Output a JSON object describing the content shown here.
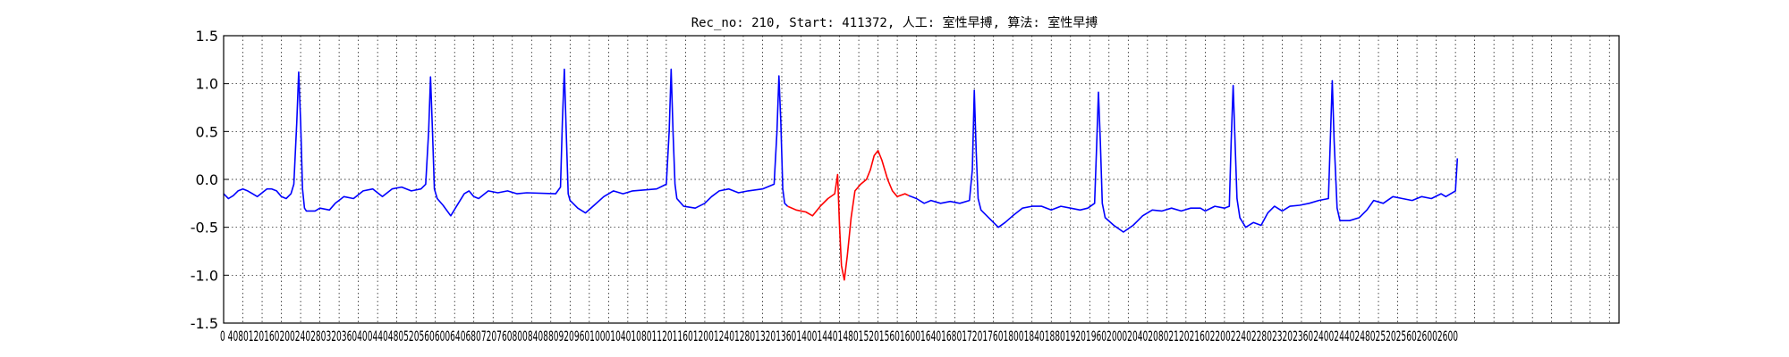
{
  "chart_data": {
    "type": "line",
    "title": "Rec_no: 210, Start: 411372, 人工: 室性早搏, 算法: 室性早搏",
    "xlabel": "",
    "ylabel": "",
    "xlim": [
      0,
      1450
    ],
    "ylim": [
      -1.5,
      1.5
    ],
    "grid": true,
    "y_ticks": [
      -1.5,
      -1.0,
      -0.5,
      0.0,
      0.5,
      1.0,
      1.5
    ],
    "x_tick_step": 20,
    "x_tick_labels": "0 4080 120 160 200 240 280 320 360 400 440 480 520 560 600 640 680 720 760 800 840 880 920 960 1000 1040 1080 1120 1160 1200 1240 1280 1320 1360 1400 1440 1480 1520 1560 1600 1640 1680 1720 1760 1800 1840 1880 1920 1960 2000 2040 2080 2120 2160 2200 2240 2280 2320 2360 2400 2440 2480 2520 2560 2600",
    "x_tick_labels_display": "0 4080120160200240280320360400440480520560600640680720760800840880920960100010401080112011601200124012801320136014001440148015201560160016401680172017601800184018801920196020002040208021202160220022402280232023602400244024802520256026002600",
    "series": [
      {
        "color": "#0000ff",
        "points": [
          [
            0,
            -0.15
          ],
          [
            5,
            -0.2
          ],
          [
            10,
            -0.17
          ],
          [
            15,
            -0.12
          ],
          [
            20,
            -0.1
          ],
          [
            25,
            -0.12
          ],
          [
            30,
            -0.15
          ],
          [
            35,
            -0.18
          ],
          [
            40,
            -0.14
          ],
          [
            45,
            -0.1
          ],
          [
            50,
            -0.1
          ],
          [
            55,
            -0.12
          ],
          [
            60,
            -0.18
          ],
          [
            65,
            -0.2
          ],
          [
            70,
            -0.15
          ],
          [
            73,
            -0.05
          ],
          [
            76,
            0.6
          ],
          [
            78,
            1.12
          ],
          [
            80,
            0.6
          ],
          [
            82,
            -0.1
          ],
          [
            84,
            -0.3
          ],
          [
            86,
            -0.33
          ],
          [
            95,
            -0.33
          ],
          [
            100,
            -0.3
          ],
          [
            110,
            -0.32
          ],
          [
            116,
            -0.25
          ],
          [
            125,
            -0.18
          ],
          [
            135,
            -0.2
          ],
          [
            145,
            -0.12
          ],
          [
            155,
            -0.1
          ],
          [
            165,
            -0.18
          ],
          [
            175,
            -0.1
          ],
          [
            185,
            -0.08
          ],
          [
            195,
            -0.12
          ],
          [
            205,
            -0.1
          ],
          [
            210,
            -0.05
          ],
          [
            213,
            0.5
          ],
          [
            215,
            1.07
          ],
          [
            217,
            0.5
          ],
          [
            219,
            -0.1
          ],
          [
            222,
            -0.2
          ],
          [
            228,
            -0.27
          ],
          [
            236,
            -0.38
          ],
          [
            242,
            -0.28
          ],
          [
            250,
            -0.15
          ],
          [
            255,
            -0.12
          ],
          [
            260,
            -0.18
          ],
          [
            265,
            -0.2
          ],
          [
            275,
            -0.12
          ],
          [
            285,
            -0.14
          ],
          [
            295,
            -0.12
          ],
          [
            305,
            -0.15
          ],
          [
            315,
            -0.14
          ],
          [
            345,
            -0.15
          ],
          [
            350,
            -0.08
          ],
          [
            352,
            0.6
          ],
          [
            354,
            1.15
          ],
          [
            356,
            0.5
          ],
          [
            358,
            -0.15
          ],
          [
            360,
            -0.22
          ],
          [
            368,
            -0.3
          ],
          [
            376,
            -0.35
          ],
          [
            385,
            -0.27
          ],
          [
            395,
            -0.18
          ],
          [
            405,
            -0.12
          ],
          [
            415,
            -0.15
          ],
          [
            425,
            -0.12
          ],
          [
            450,
            -0.1
          ],
          [
            460,
            -0.05
          ],
          [
            463,
            0.5
          ],
          [
            465,
            1.15
          ],
          [
            467,
            0.5
          ],
          [
            469,
            -0.05
          ],
          [
            471,
            -0.2
          ],
          [
            478,
            -0.28
          ],
          [
            490,
            -0.3
          ],
          [
            500,
            -0.25
          ],
          [
            507,
            -0.18
          ],
          [
            515,
            -0.12
          ],
          [
            525,
            -0.1
          ],
          [
            535,
            -0.14
          ],
          [
            545,
            -0.12
          ],
          [
            560,
            -0.1
          ],
          [
            572,
            -0.05
          ],
          [
            575,
            0.5
          ],
          [
            577,
            1.08
          ],
          [
            579,
            0.6
          ],
          [
            581,
            -0.1
          ],
          [
            583,
            -0.25
          ],
          [
            586,
            -0.28
          ]
        ]
      },
      {
        "color": "#ff0000",
        "points": [
          [
            586,
            -0.28
          ],
          [
            595,
            -0.32
          ],
          [
            605,
            -0.34
          ],
          [
            612,
            -0.38
          ],
          [
            620,
            -0.28
          ],
          [
            628,
            -0.2
          ],
          [
            635,
            -0.15
          ],
          [
            638,
            0.05
          ],
          [
            640,
            -0.5
          ],
          [
            642,
            -0.9
          ],
          [
            645,
            -1.05
          ],
          [
            648,
            -0.8
          ],
          [
            652,
            -0.4
          ],
          [
            656,
            -0.12
          ],
          [
            662,
            -0.05
          ],
          [
            668,
            0.0
          ],
          [
            672,
            0.1
          ],
          [
            676,
            0.25
          ],
          [
            680,
            0.3
          ],
          [
            684,
            0.2
          ],
          [
            690,
            0.0
          ],
          [
            695,
            -0.12
          ],
          [
            700,
            -0.18
          ],
          [
            708,
            -0.15
          ],
          [
            712,
            -0.17
          ]
        ]
      },
      {
        "color": "#0000ff",
        "points": [
          [
            712,
            -0.17
          ],
          [
            720,
            -0.2
          ],
          [
            728,
            -0.25
          ],
          [
            735,
            -0.22
          ],
          [
            745,
            -0.25
          ],
          [
            755,
            -0.23
          ],
          [
            765,
            -0.25
          ],
          [
            775,
            -0.22
          ],
          [
            778,
            0.1
          ],
          [
            780,
            0.93
          ],
          [
            782,
            0.3
          ],
          [
            784,
            -0.2
          ],
          [
            787,
            -0.32
          ],
          [
            795,
            -0.4
          ],
          [
            805,
            -0.5
          ],
          [
            812,
            -0.45
          ],
          [
            820,
            -0.38
          ],
          [
            830,
            -0.3
          ],
          [
            840,
            -0.28
          ],
          [
            850,
            -0.28
          ],
          [
            860,
            -0.32
          ],
          [
            870,
            -0.28
          ],
          [
            880,
            -0.3
          ],
          [
            890,
            -0.32
          ],
          [
            898,
            -0.3
          ],
          [
            905,
            -0.25
          ],
          [
            907,
            0.3
          ],
          [
            909,
            0.91
          ],
          [
            911,
            0.4
          ],
          [
            913,
            -0.25
          ],
          [
            916,
            -0.4
          ],
          [
            925,
            -0.48
          ],
          [
            935,
            -0.55
          ],
          [
            945,
            -0.48
          ],
          [
            955,
            -0.38
          ],
          [
            965,
            -0.32
          ],
          [
            975,
            -0.33
          ],
          [
            985,
            -0.3
          ],
          [
            995,
            -0.33
          ],
          [
            1005,
            -0.3
          ],
          [
            1015,
            -0.3
          ],
          [
            1020,
            -0.33
          ],
          [
            1030,
            -0.28
          ],
          [
            1040,
            -0.3
          ],
          [
            1045,
            -0.28
          ],
          [
            1047,
            0.4
          ],
          [
            1049,
            0.98
          ],
          [
            1051,
            0.4
          ],
          [
            1053,
            -0.2
          ],
          [
            1056,
            -0.4
          ],
          [
            1062,
            -0.5
          ],
          [
            1070,
            -0.45
          ],
          [
            1078,
            -0.48
          ],
          [
            1085,
            -0.35
          ],
          [
            1092,
            -0.28
          ],
          [
            1100,
            -0.33
          ],
          [
            1108,
            -0.28
          ],
          [
            1118,
            -0.27
          ],
          [
            1128,
            -0.25
          ],
          [
            1138,
            -0.22
          ],
          [
            1148,
            -0.2
          ],
          [
            1150,
            0.4
          ],
          [
            1152,
            1.03
          ],
          [
            1154,
            0.4
          ],
          [
            1157,
            -0.3
          ],
          [
            1160,
            -0.43
          ],
          [
            1170,
            -0.43
          ],
          [
            1180,
            -0.4
          ],
          [
            1188,
            -0.32
          ],
          [
            1195,
            -0.22
          ],
          [
            1205,
            -0.25
          ],
          [
            1215,
            -0.18
          ],
          [
            1225,
            -0.2
          ],
          [
            1235,
            -0.22
          ],
          [
            1245,
            -0.18
          ],
          [
            1255,
            -0.2
          ],
          [
            1265,
            -0.15
          ],
          [
            1270,
            -0.18
          ],
          [
            1280,
            -0.12
          ],
          [
            1282,
            0.22
          ]
        ]
      }
    ]
  }
}
